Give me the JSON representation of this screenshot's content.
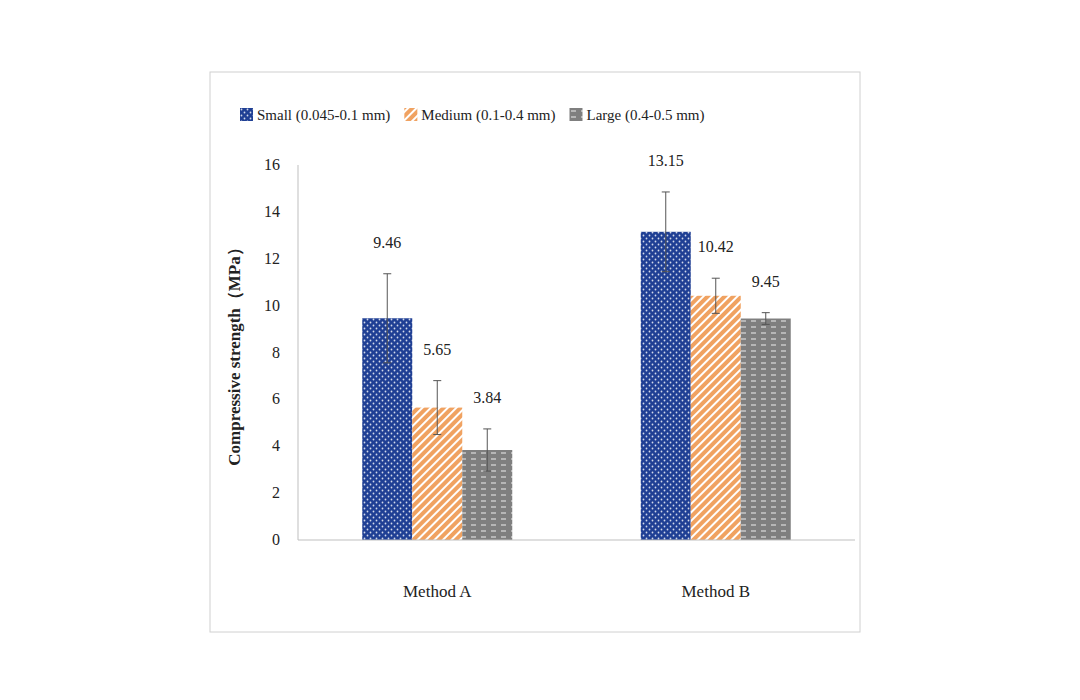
{
  "chart_data": {
    "type": "bar",
    "y_label": "Compressive strength（MPa）",
    "categories": [
      "Method A",
      "Method B"
    ],
    "series": [
      {
        "name": "Small (0.045-0.1 mm)",
        "color": "#1f3f94",
        "values": [
          9.46,
          13.15
        ],
        "errors": [
          1.9,
          1.7
        ]
      },
      {
        "name": "Medium (0.1-0.4 mm)",
        "color": "#f0a261",
        "values": [
          5.65,
          10.42
        ],
        "errors": [
          1.15,
          0.75
        ]
      },
      {
        "name": "Large (0.4-0.5 mm)",
        "color": "#7f7f7f",
        "values": [
          3.84,
          9.45
        ],
        "errors": [
          0.9,
          0.25
        ]
      }
    ],
    "ylim": [
      0,
      16
    ],
    "yticks": [
      0,
      2,
      4,
      6,
      8,
      10,
      12,
      14,
      16
    ],
    "grid": false,
    "legend": "top",
    "data_labels": true
  }
}
